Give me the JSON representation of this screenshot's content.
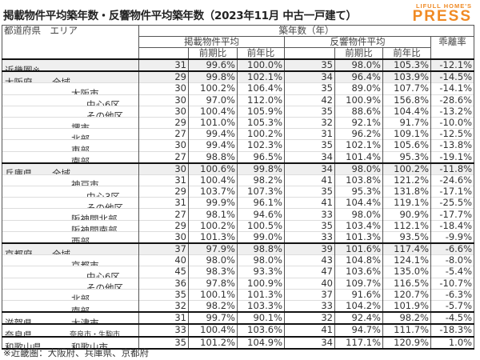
{
  "title": "掲載物件平均築年数・反響物件平均築年数（2023年11月 中古一戸建て）",
  "logo": {
    "small": "LIFULL HOME'S",
    "big": "PRESS",
    "color": "#f08a24"
  },
  "header": {
    "area": "都道府県　エリア",
    "years": "築年数（年）",
    "listed": "掲載物件平均",
    "response": "反響物件平均",
    "qoq": "前期比",
    "yoy": "前年比",
    "gap": "乖離率"
  },
  "rows": [
    {
      "pref": "近畿圏※",
      "area": "",
      "level": 0,
      "v": [
        "31",
        "99.6%",
        "100.0%",
        "35",
        "98.0%",
        "105.3%",
        "-12.1%"
      ]
    },
    {
      "pref": "大阪府",
      "area": "全域",
      "level": 1,
      "v": [
        "29",
        "99.8%",
        "102.1%",
        "34",
        "96.4%",
        "103.9%",
        "-14.5%"
      ]
    },
    {
      "pref": "",
      "area": "大阪市",
      "level": 2,
      "v": [
        "30",
        "100.2%",
        "106.4%",
        "35",
        "89.0%",
        "107.7%",
        "-14.1%"
      ]
    },
    {
      "pref": "",
      "area": "中心6区",
      "level": 3,
      "v": [
        "30",
        "97.0%",
        "112.0%",
        "42",
        "100.9%",
        "156.8%",
        "-28.6%"
      ]
    },
    {
      "pref": "",
      "area": "その他区",
      "level": 3,
      "v": [
        "30",
        "100.4%",
        "105.9%",
        "35",
        "88.6%",
        "104.4%",
        "-13.2%"
      ]
    },
    {
      "pref": "",
      "area": "堺市",
      "level": 2,
      "v": [
        "29",
        "101.0%",
        "105.3%",
        "32",
        "92.1%",
        "91.7%",
        "-10.0%"
      ]
    },
    {
      "pref": "",
      "area": "北部",
      "level": 2,
      "v": [
        "27",
        "99.4%",
        "100.2%",
        "31",
        "96.2%",
        "109.1%",
        "-12.5%"
      ]
    },
    {
      "pref": "",
      "area": "東部",
      "level": 2,
      "v": [
        "30",
        "99.4%",
        "102.3%",
        "35",
        "102.1%",
        "105.6%",
        "-13.8%"
      ]
    },
    {
      "pref": "",
      "area": "南部",
      "level": 2,
      "v": [
        "27",
        "98.8%",
        "96.5%",
        "34",
        "101.4%",
        "95.3%",
        "-19.1%"
      ]
    },
    {
      "pref": "兵庫県",
      "area": "全域",
      "level": 1,
      "v": [
        "30",
        "100.6%",
        "99.8%",
        "34",
        "98.0%",
        "100.2%",
        "-11.8%"
      ]
    },
    {
      "pref": "",
      "area": "神戸市",
      "level": 2,
      "v": [
        "31",
        "100.4%",
        "98.2%",
        "41",
        "103.8%",
        "121.2%",
        "-24.6%"
      ]
    },
    {
      "pref": "",
      "area": "中心3区",
      "level": 3,
      "v": [
        "29",
        "103.7%",
        "107.3%",
        "35",
        "95.3%",
        "131.8%",
        "-17.1%"
      ]
    },
    {
      "pref": "",
      "area": "その他区",
      "level": 3,
      "v": [
        "31",
        "99.9%",
        "96.1%",
        "41",
        "104.4%",
        "119.1%",
        "-25.5%"
      ]
    },
    {
      "pref": "",
      "area": "阪神間北部",
      "level": 2,
      "v": [
        "27",
        "98.1%",
        "94.6%",
        "33",
        "98.0%",
        "90.9%",
        "-17.7%"
      ]
    },
    {
      "pref": "",
      "area": "阪神間南部",
      "level": 2,
      "v": [
        "29",
        "100.2%",
        "100.5%",
        "35",
        "103.4%",
        "112.1%",
        "-18.4%"
      ]
    },
    {
      "pref": "",
      "area": "西部",
      "level": 2,
      "v": [
        "30",
        "101.3%",
        "99.0%",
        "33",
        "101.3%",
        "93.5%",
        "-9.9%"
      ]
    },
    {
      "pref": "京都府",
      "area": "全域",
      "level": 1,
      "v": [
        "37",
        "97.9%",
        "98.8%",
        "39",
        "101.6%",
        "117.4%",
        "-6.6%"
      ]
    },
    {
      "pref": "",
      "area": "京都市",
      "level": 2,
      "v": [
        "40",
        "98.0%",
        "98.0%",
        "43",
        "104.8%",
        "124.1%",
        "-8.0%"
      ]
    },
    {
      "pref": "",
      "area": "中心6区",
      "level": 3,
      "v": [
        "45",
        "98.3%",
        "93.3%",
        "47",
        "103.6%",
        "135.0%",
        "-5.4%"
      ]
    },
    {
      "pref": "",
      "area": "その他区",
      "level": 3,
      "v": [
        "36",
        "97.8%",
        "100.9%",
        "40",
        "109.7%",
        "116.5%",
        "-10.7%"
      ]
    },
    {
      "pref": "",
      "area": "北部",
      "level": 2,
      "v": [
        "35",
        "100.1%",
        "101.3%",
        "37",
        "91.6%",
        "120.7%",
        "-6.3%"
      ]
    },
    {
      "pref": "",
      "area": "南部",
      "level": 2,
      "v": [
        "32",
        "98.2%",
        "103.3%",
        "33",
        "104.2%",
        "101.9%",
        "-5.7%"
      ]
    },
    {
      "pref": "滋賀県",
      "area": "大津市",
      "level": 2,
      "v": [
        "31",
        "99.7%",
        "90.1%",
        "32",
        "92.4%",
        "98.2%",
        "-4.5%"
      ]
    },
    {
      "pref": "奈良県",
      "area": "奈良市・生駒市",
      "level": 4,
      "v": [
        "33",
        "100.4%",
        "103.6%",
        "41",
        "94.7%",
        "111.7%",
        "-18.3%"
      ]
    },
    {
      "pref": "和歌山県",
      "area": "和歌山市",
      "level": 2,
      "v": [
        "35",
        "101.2%",
        "104.9%",
        "34",
        "117.1%",
        "120.9%",
        "1.0%"
      ]
    }
  ],
  "footnote": "※近畿圏：大阪府、兵庫県、京都府"
}
